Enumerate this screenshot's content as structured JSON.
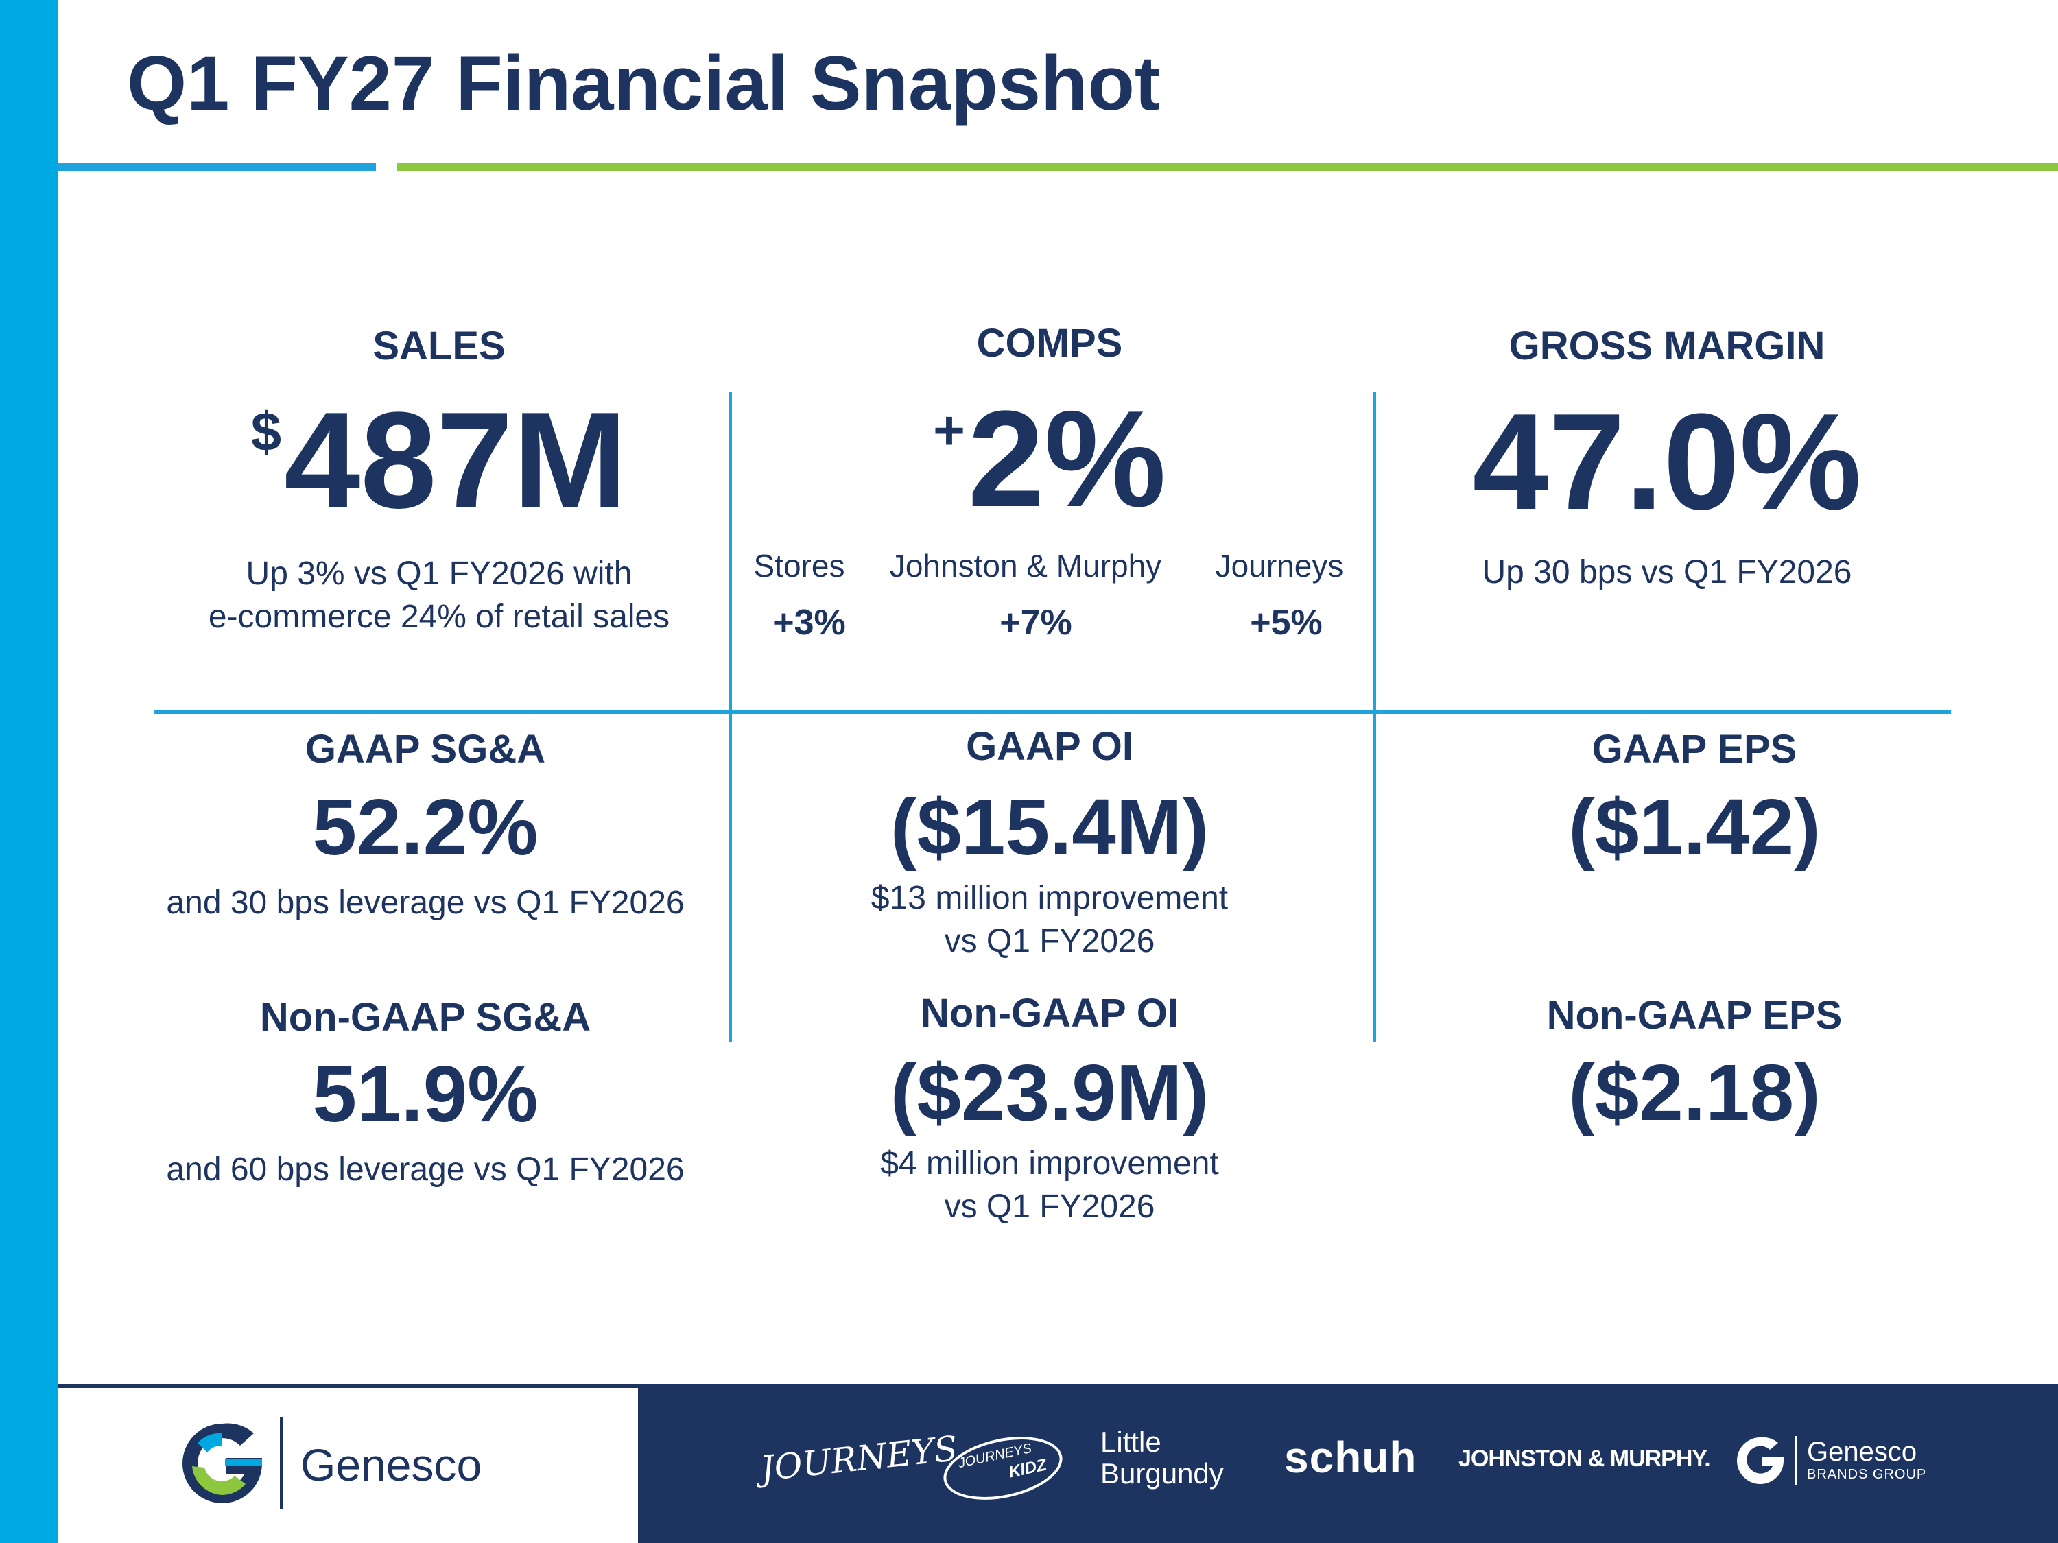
{
  "title": "Q1 FY27 Financial Snapshot",
  "colors": {
    "navy": "#1e3460",
    "blue": "#1ea3dc",
    "green": "#8dc63f",
    "sidebar": "#00a8e1"
  },
  "sales": {
    "label": "SALES",
    "currency": "$",
    "value": "487M",
    "sub_line1": "Up 3% vs Q1 FY2026 with",
    "sub_line2": "e-commerce 24% of retail sales"
  },
  "comps": {
    "label": "COMPS",
    "sign": "+",
    "value": "2%",
    "breakdown": [
      {
        "name": "Stores",
        "value": "+3%"
      },
      {
        "name": "Johnston & Murphy",
        "value": "+7%"
      },
      {
        "name": "Journeys",
        "value": "+5%"
      }
    ]
  },
  "gross_margin": {
    "label": "GROSS MARGIN",
    "value": "47.0%",
    "sub": "Up 30 bps vs Q1 FY2026"
  },
  "gaap_sga": {
    "label": "GAAP SG&A",
    "value": "52.2%",
    "sub": "and 30 bps leverage vs Q1 FY2026"
  },
  "nongaap_sga": {
    "label": "Non-GAAP SG&A",
    "value": "51.9%",
    "sub": "and 60 bps leverage vs Q1 FY2026"
  },
  "gaap_oi": {
    "label": "GAAP OI",
    "value": "($15.4M)",
    "sub_line1": "$13 million improvement",
    "sub_line2": "vs Q1 FY2026"
  },
  "nongaap_oi": {
    "label": "Non-GAAP OI",
    "value": "($23.9M)",
    "sub_line1": "$4 million improvement",
    "sub_line2": "vs Q1 FY2026"
  },
  "gaap_eps": {
    "label": "GAAP EPS",
    "value": "($1.42)"
  },
  "nongaap_eps": {
    "label": "Non-GAAP EPS",
    "value": "($2.18)"
  },
  "footer": {
    "company": "Genesco",
    "brands": {
      "journeys": "JOURNEYS",
      "journeys_kidz_1": "JOURNEYS",
      "journeys_kidz_2": "KIDZ",
      "little_burgundy_1": "Little",
      "little_burgundy_2": "Burgundy",
      "schuh": "schuh",
      "johnston_murphy": "JOHNSTON & MURPHY.",
      "genesco_brands": "Genesco",
      "genesco_brands_sub": "BRANDS GROUP"
    }
  }
}
